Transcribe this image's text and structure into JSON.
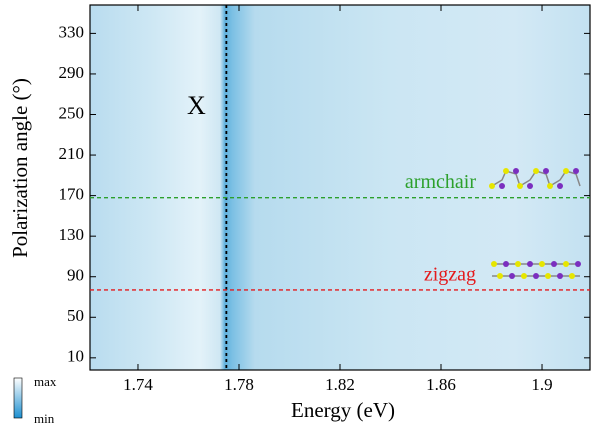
{
  "chart_data": {
    "type": "heatmap",
    "x_label": "Energy (eV)",
    "y_label": "Polarization angle (°)",
    "xlim": [
      1.721,
      1.919
    ],
    "ylim": [
      -2,
      358
    ],
    "xticks": [
      1.74,
      1.78,
      1.82,
      1.86,
      1.9
    ],
    "yticks": [
      10,
      50,
      90,
      130,
      170,
      210,
      250,
      290,
      330
    ],
    "vlines": [
      {
        "name": "X",
        "value": 1.775,
        "color": "#000000"
      }
    ],
    "hlines": [
      {
        "name": "armchair",
        "value": 168,
        "color": "#2ca02c"
      },
      {
        "name": "zigzag",
        "value": 77,
        "color": "#e41a1c"
      }
    ],
    "colorbar": {
      "max": "max",
      "min": "min"
    }
  }
}
